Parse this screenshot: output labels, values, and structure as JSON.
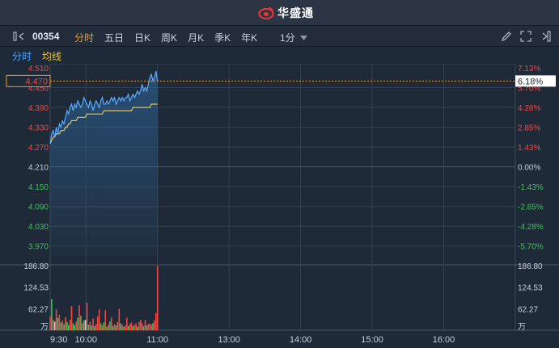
{
  "app": {
    "brand": "华盛通"
  },
  "toolbar": {
    "code": "00354",
    "tabs": [
      "分时",
      "五日",
      "日K",
      "周K",
      "月K",
      "季K",
      "年K"
    ],
    "active_tab": 0,
    "interval": "1分"
  },
  "subbar": {
    "mode": "分时",
    "avg_label": "均线"
  },
  "price_axis": {
    "left_labels": [
      "4.510",
      "4.450",
      "4.390",
      "4.330",
      "4.270",
      "4.210",
      "4.150",
      "4.090",
      "4.030",
      "3.970"
    ],
    "right_labels": [
      "7.13%",
      "5.70%",
      "4.28%",
      "2.85%",
      "1.43%",
      "0.00%",
      "-1.43%",
      "-2.85%",
      "-4.28%",
      "-5.70%"
    ],
    "current_price": "4.470",
    "current_pct": "6.18%"
  },
  "volume_axis": {
    "labels": [
      "186.80",
      "124.53",
      "62.27"
    ],
    "unit": "万"
  },
  "time_axis": [
    "9:30",
    "10:00",
    "11:00",
    "13:00",
    "14:00",
    "15:00",
    "16:00"
  ],
  "colors": {
    "up": "#f04848",
    "down": "#3dc25a",
    "flat": "#c8d0da",
    "price_line": "#5aa9ff",
    "avg_line": "#e6c44a",
    "accent": "#f39a1c"
  },
  "chart_data": {
    "type": "line",
    "prev_close": 4.21,
    "price_range": [
      3.94,
      4.51
    ],
    "session_minutes": 390,
    "price": [
      4.28,
      4.31,
      4.32,
      4.3,
      4.33,
      4.31,
      4.34,
      4.33,
      4.35,
      4.34,
      4.36,
      4.38,
      4.37,
      4.39,
      4.4,
      4.38,
      4.4,
      4.39,
      4.41,
      4.4,
      4.39,
      4.4,
      4.42,
      4.41,
      4.4,
      4.39,
      4.41,
      4.4,
      4.38,
      4.4,
      4.41,
      4.4,
      4.39,
      4.41,
      4.42,
      4.4,
      4.4,
      4.41,
      4.4,
      4.41,
      4.42,
      4.41,
      4.42,
      4.4,
      4.41,
      4.42,
      4.41,
      4.42,
      4.41,
      4.42,
      4.42,
      4.43,
      4.41,
      4.42,
      4.43,
      4.42,
      4.43,
      4.44,
      4.43,
      4.44,
      4.46,
      4.44,
      4.45,
      4.44,
      4.46,
      4.48,
      4.49,
      4.47,
      4.48,
      4.5,
      4.47
    ],
    "avg": [
      4.28,
      4.29,
      4.3,
      4.3,
      4.31,
      4.31,
      4.31,
      4.32,
      4.32,
      4.32,
      4.33,
      4.33,
      4.34,
      4.34,
      4.35,
      4.35,
      4.35,
      4.35,
      4.36,
      4.36,
      4.36,
      4.36,
      4.36,
      4.36,
      4.37,
      4.37,
      4.37,
      4.37,
      4.37,
      4.37,
      4.37,
      4.37,
      4.37,
      4.37,
      4.37,
      4.38,
      4.38,
      4.38,
      4.38,
      4.38,
      4.38,
      4.38,
      4.38,
      4.38,
      4.38,
      4.38,
      4.38,
      4.38,
      4.38,
      4.38,
      4.38,
      4.38,
      4.38,
      4.38,
      4.39,
      4.39,
      4.39,
      4.39,
      4.39,
      4.39,
      4.39,
      4.39,
      4.39,
      4.39,
      4.39,
      4.39,
      4.4,
      4.4,
      4.4,
      4.4,
      4.4
    ],
    "volume_max": 186.8,
    "volume": [
      40,
      90,
      30,
      25,
      60,
      35,
      45,
      22,
      28,
      18,
      38,
      24,
      15,
      30,
      70,
      20,
      14,
      25,
      36,
      72,
      42,
      20,
      28,
      30,
      80,
      16,
      24,
      14,
      34,
      12,
      18,
      40,
      60,
      20,
      14,
      22,
      58,
      10,
      16,
      26,
      38,
      12,
      18,
      14,
      24,
      62,
      20,
      16,
      10,
      14,
      36,
      12,
      18,
      22,
      12,
      16,
      20,
      10,
      24,
      30,
      20,
      12,
      30,
      14,
      18,
      20,
      16,
      20,
      28,
      50,
      186
    ],
    "volume_dir": [
      "up",
      "down",
      "up",
      "flat",
      "up",
      "down",
      "up",
      "down",
      "up",
      "down",
      "up",
      "down",
      "down",
      "up",
      "up",
      "down",
      "down",
      "up",
      "down",
      "up",
      "down",
      "up",
      "down",
      "flat",
      "up",
      "down",
      "up",
      "down",
      "up",
      "down",
      "up",
      "up",
      "up",
      "down",
      "up",
      "down",
      "up",
      "down",
      "up",
      "down",
      "up",
      "down",
      "up",
      "down",
      "up",
      "up",
      "down",
      "up",
      "down",
      "up",
      "up",
      "down",
      "up",
      "up",
      "down",
      "up",
      "up",
      "down",
      "up",
      "up",
      "up",
      "down",
      "up",
      "down",
      "up",
      "up",
      "up",
      "down",
      "up",
      "up",
      "up"
    ]
  }
}
